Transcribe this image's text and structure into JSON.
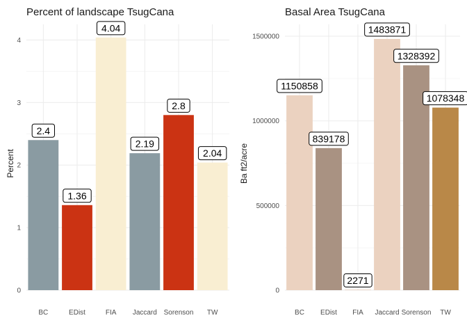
{
  "chart_data": [
    {
      "type": "bar",
      "title": "Percent of landscape  TsugCana",
      "xlabel": "",
      "ylabel": "Percent",
      "categories": [
        "BC",
        "EDist",
        "FIA",
        "Jaccard",
        "Sorenson",
        "TW"
      ],
      "values": [
        2.4,
        1.36,
        4.04,
        2.19,
        2.8,
        2.04
      ],
      "data_labels": [
        "2.4",
        "1.36",
        "4.04",
        "2.19",
        "2.8",
        "2.04"
      ],
      "colors": [
        "#8a9ba2",
        "#cb3313",
        "#f9eed2",
        "#8a9ba2",
        "#cb3313",
        "#f9eed2"
      ],
      "ylim": [
        0,
        4.25
      ],
      "yticks": [
        0,
        1,
        2,
        3,
        4
      ],
      "ytick_labels": [
        "0",
        "1",
        "2",
        "3",
        "4"
      ],
      "grid": true,
      "legend": "none"
    },
    {
      "type": "bar",
      "title": "Basal Area  TsugCana",
      "xlabel": "",
      "ylabel": "Ba ft2/acre",
      "categories": [
        "BC",
        "EDist",
        "FIA",
        "Jaccard",
        "Sorenson",
        "TW"
      ],
      "values": [
        1150858,
        839178,
        2271,
        1483871,
        1328392,
        1078348
      ],
      "data_labels": [
        "1150858",
        "839178",
        "2271",
        "1483871",
        "1328392",
        "1078348"
      ],
      "colors": [
        "#ebd2c0",
        "#a99282",
        "#ebd2c0",
        "#ebd2c0",
        "#a99282",
        "#b98848"
      ],
      "ylim": [
        0,
        1570000
      ],
      "yticks": [
        0,
        500000,
        1000000,
        1500000
      ],
      "ytick_labels": [
        "0",
        "500000",
        "1000000",
        "1500000"
      ],
      "grid": true,
      "legend": "none"
    }
  ]
}
